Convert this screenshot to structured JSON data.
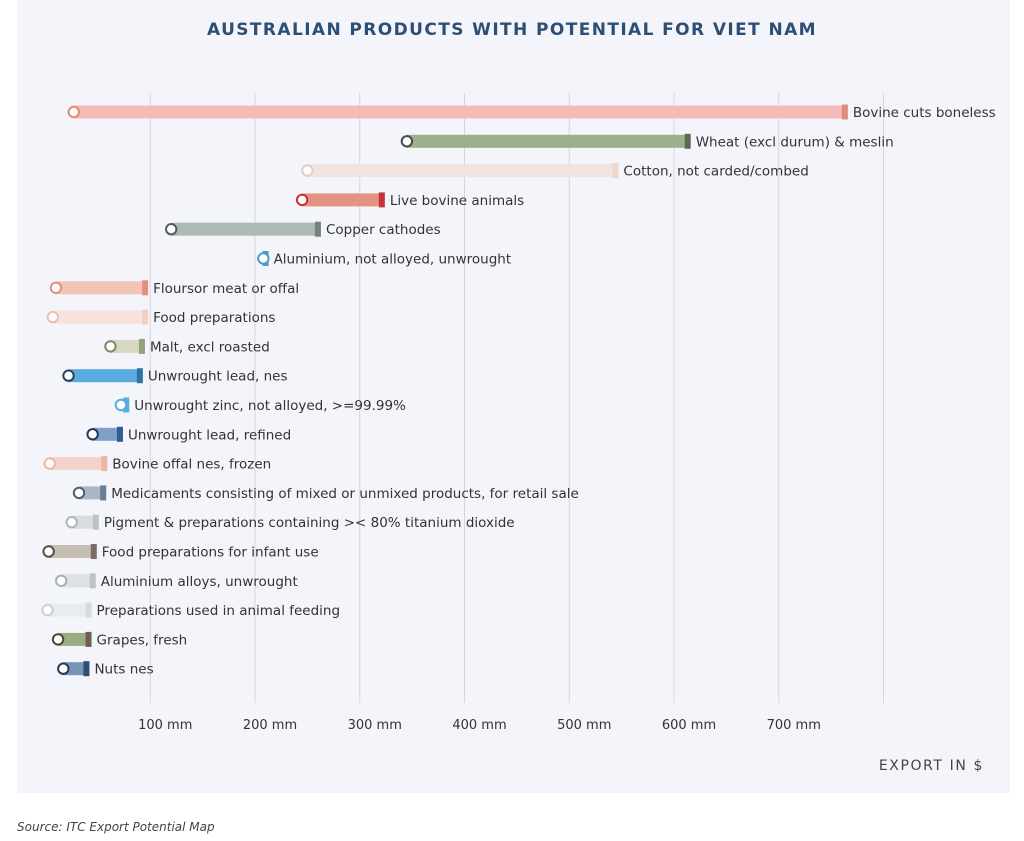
{
  "title": "AUSTRALIAN PRODUCTS WITH POTENTIAL FOR VIET NAM",
  "x_axis_title": "EXPORT IN $",
  "source": "Source: ITC Export Potential Map",
  "chart_data": {
    "type": "dumbbell-bar",
    "title": "AUSTRALIAN PRODUCTS WITH POTENTIAL FOR VIET NAM",
    "xlabel": "EXPORT IN $",
    "xlim": [
      0,
      800
    ],
    "x_ticks": [
      {
        "value": 100,
        "label": "100 mm"
      },
      {
        "value": 200,
        "label": "200 mm"
      },
      {
        "value": 300,
        "label": "300 mm"
      },
      {
        "value": 400,
        "label": "400 mm"
      },
      {
        "value": 500,
        "label": "500 mm"
      },
      {
        "value": 600,
        "label": "600 mm"
      },
      {
        "value": 700,
        "label": "700 mm"
      },
      {
        "value": 800,
        "label": ""
      }
    ],
    "grid": true,
    "items": [
      {
        "label": "Bovine cuts boneless",
        "start": 27,
        "end": 765,
        "color": "#f6b9b3",
        "mark": "#e08a7a",
        "stroke": "#e08a7a"
      },
      {
        "label": "Wheat (excl durum) & meslin",
        "start": 345,
        "end": 615,
        "color": "#9db08b",
        "mark": "#5f6852",
        "stroke": "#4a4a4a"
      },
      {
        "label": "Cotton, not carded/combed",
        "start": 250,
        "end": 546,
        "color": "#f1e3de",
        "mark": "#ecd6cf",
        "stroke": "#e2cdc5"
      },
      {
        "label": "Live bovine animals",
        "start": 245,
        "end": 323,
        "color": "#e49383",
        "mark": "#c8313a",
        "stroke": "#c8313a"
      },
      {
        "label": "Copper cathodes",
        "start": 120,
        "end": 262,
        "color": "#aeb9b6",
        "mark": "#74817f",
        "stroke": "#555d5c"
      },
      {
        "label": "Aluminium, not alloyed, unwrought",
        "start": 208,
        "end": 212,
        "color": "#a9d2e6",
        "mark": "#4b9ac7",
        "stroke": "#4b9ac7"
      },
      {
        "label": "Floursor meat or offal",
        "start": 10,
        "end": 97,
        "color": "#f3c3b5",
        "mark": "#e58f76",
        "stroke": "#e58f76"
      },
      {
        "label": "Food preparations",
        "start": 7,
        "end": 97,
        "color": "#f7e3dc",
        "mark": "#f2cfc3",
        "stroke": "#ebbfb1"
      },
      {
        "label": "Malt, excl roasted",
        "start": 62,
        "end": 94,
        "color": "#d7d8c4",
        "mark": "#93a479",
        "stroke": "#7f8867"
      },
      {
        "label": "Unwrought lead, nes",
        "start": 22,
        "end": 92,
        "color": "#5aace0",
        "mark": "#2f74a7",
        "stroke": "#23445c"
      },
      {
        "label": "Unwrought zinc, not alloyed, >=99.99%",
        "start": 72,
        "end": 79,
        "color": "#b5d9ee",
        "mark": "#5aace0",
        "stroke": "#5aace0"
      },
      {
        "label": "Unwrought lead, refined",
        "start": 45,
        "end": 73,
        "color": "#7e9fc6",
        "mark": "#315c8f",
        "stroke": "#263a54"
      },
      {
        "label": "Bovine offal nes, frozen",
        "start": 4,
        "end": 58,
        "color": "#f4d3c8",
        "mark": "#f1b5a3",
        "stroke": "#f1b5a3"
      },
      {
        "label": "Medicaments consisting of mixed or unmixed products, for retail sale",
        "start": 32,
        "end": 57,
        "color": "#aab6c3",
        "mark": "#6c7f92",
        "stroke": "#4f5f70"
      },
      {
        "label": "Pigment & preparations containing >< 80% titanium dioxide",
        "start": 25,
        "end": 50,
        "color": "#d8dde2",
        "mark": "#b8c4cc",
        "stroke": "#aeb6bd"
      },
      {
        "label": "Food preparations for infant use",
        "start": 3,
        "end": 48,
        "color": "#c6bdb3",
        "mark": "#7d6b63",
        "stroke": "#5a4d47"
      },
      {
        "label": "Aluminium alloys, unwrought",
        "start": 15,
        "end": 47,
        "color": "#dde1e5",
        "mark": "#bcc3c9",
        "stroke": "#a9b0b6"
      },
      {
        "label": "Preparations used in animal feeding",
        "start": 2,
        "end": 43,
        "color": "#e8ecef",
        "mark": "#d4dbe0",
        "stroke": "#c7cfd5"
      },
      {
        "label": "Grapes, fresh",
        "start": 12,
        "end": 43,
        "color": "#9bac82",
        "mark": "#6f604f",
        "stroke": "#4d463d"
      },
      {
        "label": "Nuts nes",
        "start": 17,
        "end": 41,
        "color": "#7b93b6",
        "mark": "#2e4f74",
        "stroke": "#223a55"
      }
    ]
  }
}
